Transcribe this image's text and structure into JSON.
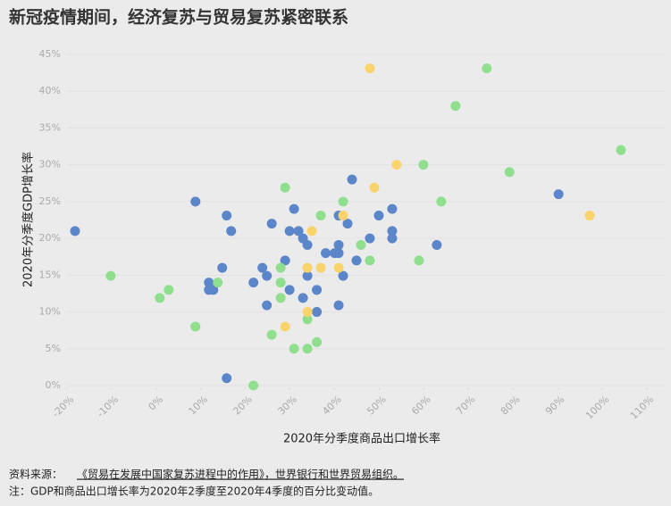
{
  "chart_data": {
    "type": "scatter",
    "title": "新冠疫情期间，经济复苏与贸易复苏紧密联系",
    "xlabel": "2020年分季度商品出口增长率",
    "ylabel": "2020年分季度GDP增长率",
    "source_label": "资料来源：",
    "source": "《贸易在发展中国家复苏进程中的作用》，世界银行和世界贸易组织。",
    "note": "注：GDP和商品出口增长率为2020年2季度至2020年4季度的百分比变动值。",
    "xlim": [
      -20,
      110
    ],
    "ylim": [
      0,
      45
    ],
    "xticks": [
      {
        "value": -20,
        "label": "-20%"
      },
      {
        "value": -10,
        "label": "-10%"
      },
      {
        "value": 0,
        "label": "0%"
      },
      {
        "value": 10,
        "label": "10%"
      },
      {
        "value": 20,
        "label": "20%"
      },
      {
        "value": 30,
        "label": "30%"
      },
      {
        "value": 40,
        "label": "40%"
      },
      {
        "value": 50,
        "label": "50%"
      },
      {
        "value": 60,
        "label": "60%"
      },
      {
        "value": 70,
        "label": "70%"
      },
      {
        "value": 80,
        "label": "80%"
      },
      {
        "value": 90,
        "label": "90%"
      },
      {
        "value": 100,
        "label": "100%"
      },
      {
        "value": 110,
        "label": "110%"
      }
    ],
    "yticks": [
      {
        "value": 0,
        "label": "0%"
      },
      {
        "value": 5,
        "label": "5%"
      },
      {
        "value": 10,
        "label": "10%"
      },
      {
        "value": 15,
        "label": "15%"
      },
      {
        "value": 20,
        "label": "20%"
      },
      {
        "value": 25,
        "label": "25%"
      },
      {
        "value": 30,
        "label": "30%"
      },
      {
        "value": 35,
        "label": "35%"
      },
      {
        "value": 40,
        "label": "40%"
      },
      {
        "value": 45,
        "label": "45%"
      }
    ],
    "grid": true,
    "series": [
      {
        "color": "#5b86c9",
        "x": [
          -18.2,
          8.8,
          15.8,
          16.8,
          14.8,
          11.8,
          11.8,
          12.8,
          15.8,
          21.8,
          23.8,
          24.8,
          25.9,
          24.8,
          28.9,
          29.9,
          30.9,
          31.9,
          32.9,
          33.9,
          29.9,
          32.9,
          33.9,
          36.0,
          36.0,
          38.0,
          40.0,
          40.9,
          40.9,
          41.9,
          40.9,
          40.9,
          42.9,
          43.9,
          44.9,
          47.9,
          49.9,
          52.9,
          52.9,
          52.9,
          62.9,
          90.2
        ],
        "values": [
          21.0,
          25.0,
          23.1,
          21.0,
          16.0,
          14.0,
          13.0,
          13.0,
          1.0,
          14.0,
          16.0,
          14.9,
          22.0,
          10.9,
          17.0,
          21.0,
          24.0,
          21.0,
          20.0,
          19.1,
          13.0,
          11.9,
          14.9,
          13.0,
          10.0,
          18.0,
          18.0,
          18.0,
          19.1,
          14.9,
          10.9,
          23.1,
          22.0,
          28.0,
          17.0,
          20.0,
          23.1,
          24.0,
          21.0,
          20.0,
          19.1,
          26.0
        ]
      },
      {
        "color": "#8fdf8f",
        "x": [
          -10.2,
          0.8,
          2.8,
          8.8,
          13.8,
          21.8,
          25.9,
          27.9,
          27.9,
          27.9,
          28.9,
          30.9,
          33.9,
          33.9,
          36.0,
          36.9,
          41.9,
          45.9,
          47.9,
          59.9,
          58.9,
          63.9,
          67.1,
          74.1,
          79.2,
          104.2
        ],
        "values": [
          14.9,
          11.9,
          13.0,
          8.0,
          14.0,
          0,
          6.9,
          16.0,
          14.0,
          11.9,
          26.9,
          5.0,
          5.0,
          9.0,
          5.9,
          23.1,
          25.0,
          19.1,
          17.0,
          30.0,
          17.0,
          25.0,
          38.0,
          43.1,
          29.0,
          32.0
        ]
      },
      {
        "color": "#f9d36b",
        "x": [
          47.9,
          53.9,
          48.9,
          41.9,
          34.9,
          33.9,
          36.9,
          40.9,
          33.9,
          28.9,
          97.2
        ],
        "values": [
          43.1,
          30.0,
          26.9,
          23.1,
          21.0,
          16.0,
          16.0,
          16.0,
          10.0,
          8.0,
          23.1
        ]
      }
    ]
  }
}
